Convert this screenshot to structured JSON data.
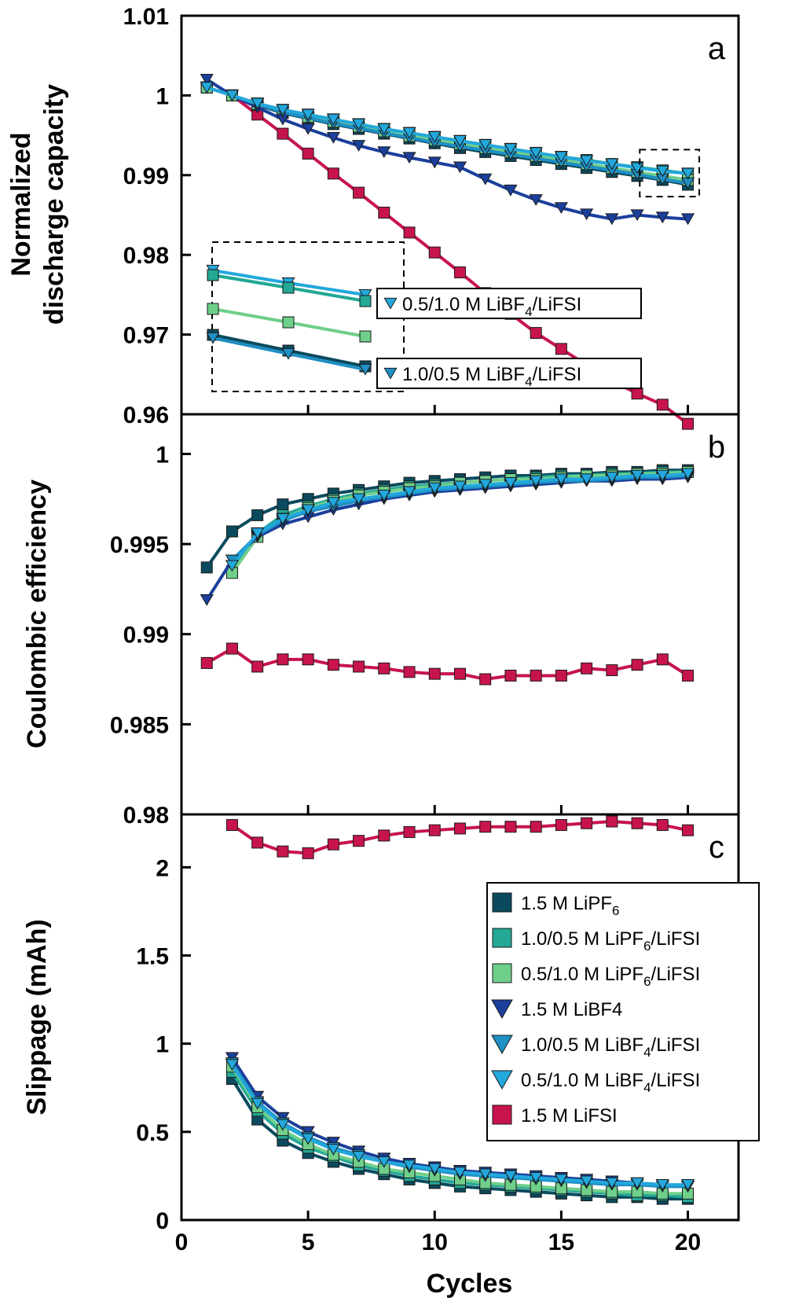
{
  "chart_data": [
    {
      "panel": "a",
      "type": "line",
      "ylabel_lines": [
        "Normalized",
        "discharge capacity"
      ],
      "ylim": [
        0.96,
        1.01
      ],
      "yticks": [
        "1.01",
        "1",
        "0.99",
        "0.98",
        "0.97",
        "0.96"
      ],
      "annotations": [
        "0.5/1.0 M LiBF4/LiFSI",
        "1.0/0.5 M LiBF4/LiFSI"
      ],
      "x": [
        1,
        2,
        3,
        4,
        5,
        6,
        7,
        8,
        9,
        10,
        11,
        12,
        13,
        14,
        15,
        16,
        17,
        18,
        19,
        20
      ],
      "series": [
        {
          "name": "1.5 M LiPF6",
          "marker": "square",
          "color": "#0b4a5e",
          "values": [
            1.001,
            1.0,
            0.9988,
            0.9978,
            0.9971,
            0.9964,
            0.9958,
            0.9952,
            0.9946,
            0.994,
            0.9934,
            0.9929,
            0.9924,
            0.9919,
            0.9914,
            0.9909,
            0.9904,
            0.9899,
            0.9894,
            0.9888
          ]
        },
        {
          "name": "1.0/0.5 M LiPF6/LiFSI",
          "marker": "square",
          "color": "#22a895",
          "values": [
            1.001,
            1.0,
            0.999,
            0.9982,
            0.9976,
            0.997,
            0.9964,
            0.9958,
            0.9953,
            0.9948,
            0.9943,
            0.9938,
            0.9933,
            0.9928,
            0.9923,
            0.9919,
            0.9914,
            0.991,
            0.9906,
            0.9902
          ]
        },
        {
          "name": "0.5/1.0 M LiPF6/LiFSI",
          "marker": "square",
          "color": "#6fcf8a",
          "values": [
            1.001,
            1.0,
            0.9989,
            0.998,
            0.9973,
            0.9967,
            0.9961,
            0.9955,
            0.9949,
            0.9944,
            0.9939,
            0.9934,
            0.9929,
            0.9924,
            0.9919,
            0.9914,
            0.9909,
            0.9904,
            0.9899,
            0.9894
          ]
        },
        {
          "name": "1.5 M LiBF4",
          "marker": "triangle-down",
          "color": "#1b3f9c",
          "values": [
            1.002,
            1.0,
            0.9985,
            0.997,
            0.9958,
            0.9947,
            0.9937,
            0.9929,
            0.9922,
            0.9916,
            0.991,
            0.9895,
            0.9881,
            0.9869,
            0.9859,
            0.9851,
            0.9845,
            0.985,
            0.9847,
            0.9845
          ]
        },
        {
          "name": "1.0/0.5 M LiBF4/LiFSI",
          "marker": "triangle-down",
          "color": "#1f8fc4",
          "values": [
            1.001,
            1.0,
            0.9989,
            0.9979,
            0.9972,
            0.9965,
            0.9959,
            0.9953,
            0.9947,
            0.9941,
            0.9936,
            0.9931,
            0.9926,
            0.9921,
            0.9916,
            0.9911,
            0.9906,
            0.9901,
            0.9895,
            0.989
          ]
        },
        {
          "name": "0.5/1.0 M LiBF4/LiFSI",
          "marker": "triangle-down",
          "color": "#22a8dc",
          "values": [
            1.001,
            1.0,
            0.999,
            0.9982,
            0.9976,
            0.997,
            0.9964,
            0.9958,
            0.9953,
            0.9948,
            0.9943,
            0.9938,
            0.9933,
            0.9928,
            0.9923,
            0.9918,
            0.9914,
            0.9909,
            0.9905,
            0.9902
          ]
        },
        {
          "name": "1.5 M LiFSI",
          "marker": "square",
          "color": "#c8144c",
          "values": [
            1.001,
            1.0,
            0.9976,
            0.9952,
            0.9927,
            0.9902,
            0.9878,
            0.9853,
            0.9828,
            0.9803,
            0.9778,
            0.9752,
            0.9726,
            0.9702,
            0.9682,
            0.9662,
            0.9642,
            0.9626,
            0.9612,
            0.9588
          ]
        }
      ]
    },
    {
      "panel": "b",
      "type": "line",
      "ylabel": "Coulombic efficiency",
      "ylim": [
        0.98,
        1.002
      ],
      "yticks": [
        "1",
        "0.995",
        "0.99",
        "0.985",
        "0.98"
      ],
      "x": [
        1,
        2,
        3,
        4,
        5,
        6,
        7,
        8,
        9,
        10,
        11,
        12,
        13,
        14,
        15,
        16,
        17,
        18,
        19,
        20
      ],
      "series": [
        {
          "name": "1.5 M LiPF6",
          "marker": "square",
          "color": "#0b4a5e",
          "values": [
            0.9937,
            0.9957,
            0.9966,
            0.9972,
            0.9975,
            0.9978,
            0.998,
            0.9982,
            0.9984,
            0.9985,
            0.9986,
            0.9987,
            0.9988,
            0.9988,
            0.9989,
            0.9989,
            0.999,
            0.999,
            0.9991,
            0.9991
          ]
        },
        {
          "name": "1.0/0.5 M LiPF6/LiFSI",
          "marker": "square",
          "color": "#22a895",
          "values": [
            null,
            0.9935,
            0.9956,
            0.9966,
            0.9971,
            0.9975,
            0.9978,
            0.998,
            0.9982,
            0.9983,
            0.9984,
            0.9985,
            0.9986,
            0.9987,
            0.9988,
            0.9988,
            0.9989,
            0.9989,
            0.999,
            0.999
          ]
        },
        {
          "name": "0.5/1.0 M LiPF6/LiFSI",
          "marker": "square",
          "color": "#6fcf8a",
          "values": [
            null,
            0.9934,
            0.9954,
            0.9964,
            0.997,
            0.9974,
            0.9977,
            0.9979,
            0.9981,
            0.9982,
            0.9984,
            0.9985,
            0.9986,
            0.9986,
            0.9987,
            0.9988,
            0.9988,
            0.9989,
            0.9989,
            0.999
          ]
        },
        {
          "name": "1.5 M LiBF4",
          "marker": "triangle-down",
          "color": "#1b3f9c",
          "values": [
            0.9919,
            0.9941,
            0.9954,
            0.9961,
            0.9965,
            0.9969,
            0.9972,
            0.9975,
            0.9977,
            0.9979,
            0.998,
            0.9981,
            0.9982,
            0.9983,
            0.9984,
            0.9985,
            0.9985,
            0.9986,
            0.9986,
            0.9987
          ]
        },
        {
          "name": "1.0/0.5 M LiBF4/LiFSI",
          "marker": "triangle-down",
          "color": "#1f8fc4",
          "values": [
            null,
            0.9941,
            0.9955,
            0.9963,
            0.9968,
            0.9971,
            0.9974,
            0.9976,
            0.9978,
            0.998,
            0.9981,
            0.9982,
            0.9983,
            0.9984,
            0.9985,
            0.9985,
            0.9986,
            0.9987,
            0.9987,
            0.9988
          ]
        },
        {
          "name": "0.5/1.0 M LiBF4/LiFSI",
          "marker": "triangle-down",
          "color": "#22a8dc",
          "values": [
            null,
            0.9938,
            0.9956,
            0.9964,
            0.9969,
            0.9973,
            0.9975,
            0.9977,
            0.9979,
            0.9981,
            0.9982,
            0.9983,
            0.9984,
            0.9985,
            0.9986,
            0.9986,
            0.9987,
            0.9988,
            0.9988,
            0.9989
          ]
        },
        {
          "name": "1.5 M LiFSI",
          "marker": "square",
          "color": "#c8144c",
          "values": [
            0.9884,
            0.9892,
            0.9882,
            0.9886,
            0.9886,
            0.9883,
            0.9882,
            0.9881,
            0.9879,
            0.9878,
            0.9878,
            0.9875,
            0.9877,
            0.9877,
            0.9877,
            0.9881,
            0.988,
            0.9883,
            0.9886,
            0.9877
          ]
        }
      ]
    },
    {
      "panel": "c",
      "type": "line",
      "ylabel": "Slippage (mAh)",
      "xlabel": "Cycles",
      "xlim": [
        0,
        22
      ],
      "xticks": [
        "0",
        "5",
        "10",
        "15",
        "20"
      ],
      "ylim": [
        0,
        2.3
      ],
      "yticks": [
        "2",
        "1.5",
        "1",
        "0.5",
        "0"
      ],
      "legend_position": "right",
      "x": [
        2,
        3,
        4,
        5,
        6,
        7,
        8,
        9,
        10,
        11,
        12,
        13,
        14,
        15,
        16,
        17,
        18,
        19,
        20
      ],
      "series": [
        {
          "name": "1.5 M LiPF6",
          "legend_main": "1.5 M LiPF",
          "legend_sub": "6",
          "legend_rest": "",
          "marker": "square",
          "color": "#0b4a5e",
          "values": [
            0.8,
            0.57,
            0.45,
            0.38,
            0.33,
            0.29,
            0.26,
            0.23,
            0.21,
            0.19,
            0.18,
            0.17,
            0.16,
            0.15,
            0.14,
            0.13,
            0.13,
            0.12,
            0.12
          ]
        },
        {
          "name": "1.0/0.5 M LiPF6/LiFSI",
          "legend_main": "1.0/0.5 M LiPF",
          "legend_sub": "6",
          "legend_rest": "/LiFSI",
          "marker": "square",
          "color": "#22a895",
          "values": [
            0.84,
            0.62,
            0.49,
            0.41,
            0.36,
            0.31,
            0.28,
            0.25,
            0.23,
            0.21,
            0.2,
            0.19,
            0.18,
            0.17,
            0.16,
            0.15,
            0.14,
            0.14,
            0.13
          ]
        },
        {
          "name": "0.5/1.0 M LiPF6/LiFSI",
          "legend_main": "0.5/1.0 M LiPF",
          "legend_sub": "6",
          "legend_rest": "/LiFSI",
          "marker": "square",
          "color": "#6fcf8a",
          "values": [
            0.87,
            0.64,
            0.51,
            0.43,
            0.37,
            0.33,
            0.29,
            0.27,
            0.25,
            0.23,
            0.21,
            0.2,
            0.19,
            0.18,
            0.17,
            0.16,
            0.16,
            0.15,
            0.15
          ]
        },
        {
          "name": "1.5 M LiBF4",
          "legend_main": "1.5 M LiBF4",
          "legend_sub": "",
          "legend_rest": "",
          "marker": "triangle-down",
          "color": "#1b3f9c",
          "values": [
            0.92,
            0.7,
            0.58,
            0.5,
            0.44,
            0.39,
            0.35,
            0.32,
            0.3,
            0.28,
            0.27,
            0.26,
            0.25,
            0.24,
            0.23,
            0.22,
            0.21,
            0.2,
            0.19
          ]
        },
        {
          "name": "1.0/0.5 M LiBF4/LiFSI",
          "legend_main": "1.0/0.5 M LiBF",
          "legend_sub": "4",
          "legend_rest": "/LiFSI",
          "marker": "triangle-down",
          "color": "#1f8fc4",
          "values": [
            0.89,
            0.67,
            0.55,
            0.47,
            0.41,
            0.37,
            0.33,
            0.3,
            0.28,
            0.26,
            0.25,
            0.24,
            0.23,
            0.22,
            0.21,
            0.2,
            0.2,
            0.19,
            0.19
          ]
        },
        {
          "name": "0.5/1.0 M LiBF4/LiFSI",
          "legend_main": "0.5/1.0 M LiBF",
          "legend_sub": "4",
          "legend_rest": "/LiFSI",
          "marker": "triangle-down",
          "color": "#22a8dc",
          "values": [
            0.88,
            0.66,
            0.54,
            0.46,
            0.4,
            0.36,
            0.33,
            0.31,
            0.29,
            0.27,
            0.26,
            0.25,
            0.24,
            0.23,
            0.22,
            0.21,
            0.21,
            0.2,
            0.2
          ]
        },
        {
          "name": "1.5 M LiFSI",
          "legend_main": "1.5 M LiFSI",
          "legend_sub": "",
          "legend_rest": "",
          "marker": "square",
          "color": "#c8144c",
          "values": [
            2.24,
            2.14,
            2.09,
            2.08,
            2.13,
            2.15,
            2.18,
            2.2,
            2.21,
            2.22,
            2.23,
            2.23,
            2.23,
            2.24,
            2.25,
            2.26,
            2.25,
            2.24,
            2.21
          ]
        }
      ]
    }
  ]
}
